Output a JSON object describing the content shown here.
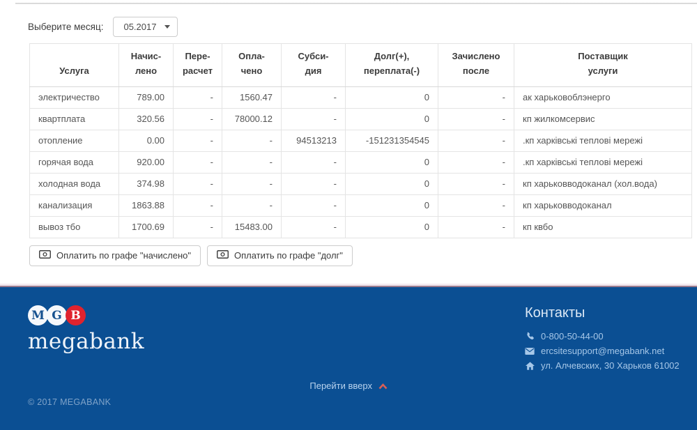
{
  "month_selector": {
    "label": "Выберите месяц:",
    "value": "05.2017"
  },
  "table": {
    "headers": [
      {
        "line1": "",
        "line2": "Услуга"
      },
      {
        "line1": "Начис-",
        "line2": "лено"
      },
      {
        "line1": "Пере-",
        "line2": "расчет"
      },
      {
        "line1": "Опла-",
        "line2": "чено"
      },
      {
        "line1": "Субси-",
        "line2": "дия"
      },
      {
        "line1": "Долг(+),",
        "line2": "переплата(-)"
      },
      {
        "line1": "Зачислено",
        "line2": "после"
      },
      {
        "line1": "Поставщик",
        "line2": "услуги"
      }
    ],
    "rows": [
      {
        "service": "электричество",
        "accrued": "789.00",
        "recalc": "-",
        "paid": "1560.47",
        "subsidy": "-",
        "debt": "0",
        "credited": "-",
        "supplier": "ак харьковоблэнерго"
      },
      {
        "service": "квартплата",
        "accrued": "320.56",
        "recalc": "-",
        "paid": "78000.12",
        "subsidy": "-",
        "debt": "0",
        "credited": "-",
        "supplier": "кп жилкомсервис"
      },
      {
        "service": "отопление",
        "accrued": "0.00",
        "recalc": "-",
        "paid": "-",
        "subsidy": "94513213",
        "debt": "-151231354545",
        "credited": "-",
        "supplier": ".кп харківські теплові мережі"
      },
      {
        "service": "горячая вода",
        "accrued": "920.00",
        "recalc": "-",
        "paid": "-",
        "subsidy": "-",
        "debt": "0",
        "credited": "-",
        "supplier": ".кп харківські теплові мережі"
      },
      {
        "service": "холодная вода",
        "accrued": "374.98",
        "recalc": "-",
        "paid": "-",
        "subsidy": "-",
        "debt": "0",
        "credited": "-",
        "supplier": "кп харьковводоканал (хол.вода)"
      },
      {
        "service": "канализация",
        "accrued": "1863.88",
        "recalc": "-",
        "paid": "-",
        "subsidy": "-",
        "debt": "0",
        "credited": "-",
        "supplier": "кп харьковводоканал"
      },
      {
        "service": "вывоз тбо",
        "accrued": "1700.69",
        "recalc": "-",
        "paid": "15483.00",
        "subsidy": "-",
        "debt": "0",
        "credited": "-",
        "supplier": "кп квбо"
      }
    ]
  },
  "buttons": {
    "pay_accrued": "Оплатить по графе \"начислено\"",
    "pay_debt": "Оплатить по графе \"долг\""
  },
  "footer": {
    "logo": {
      "circle1": "M",
      "circle2": "G",
      "circle3": "B",
      "wordmark": "megabank"
    },
    "contacts": {
      "title": "Контакты",
      "phone": "0-800-50-44-00",
      "email": "ercsitesupport@megabank.net",
      "address": "ул. Алчевских, 30 Харьков 61002"
    },
    "go_top": "Перейти вверх",
    "copyright": "© 2017 MEGABANK"
  },
  "colors": {
    "footer_bg": "#0b4f93",
    "footer_top_line": "#997a8d",
    "logo_red": "#e0232e",
    "contact_link_blue": "#a6c7e8",
    "chevron_red": "#da5f56"
  }
}
